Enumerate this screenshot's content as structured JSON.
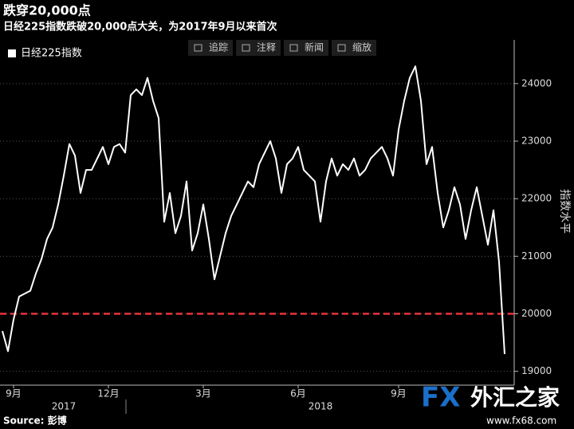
{
  "chart_data": {
    "type": "line",
    "title": "跌穿20,000点",
    "subtitle": "日经225指数跌破20,000点大关，为2017年9月以来首次",
    "y_axis_label": "指数水平",
    "source": "Source: 彭博",
    "categories": [
      null,
      null,
      "9月",
      null,
      null,
      null,
      null,
      null,
      null,
      null,
      null,
      null,
      null,
      null,
      null,
      null,
      null,
      null,
      null,
      "12月",
      null,
      null,
      null,
      null,
      null,
      null,
      null,
      null,
      null,
      null,
      null,
      null,
      null,
      null,
      null,
      null,
      "3月",
      null,
      null,
      null,
      null,
      null,
      null,
      null,
      null,
      null,
      null,
      null,
      null,
      null,
      null,
      null,
      null,
      "6月",
      null,
      null,
      null,
      null,
      null,
      null,
      null,
      null,
      null,
      null,
      null,
      null,
      null,
      null,
      null,
      null,
      null,
      "9月",
      null,
      null,
      null,
      null,
      null,
      null,
      null,
      null,
      null,
      null,
      null,
      null,
      null,
      null,
      null,
      null,
      null,
      null,
      null
    ],
    "year_labels": [
      {
        "value": 11,
        "label": "2017"
      },
      {
        "value": 57,
        "label": "2018"
      }
    ],
    "series": [
      {
        "name": "日经225指数",
        "color": "#ffffff",
        "values": [
          19700,
          19350,
          19900,
          20300,
          20350,
          20400,
          20700,
          20950,
          21300,
          21500,
          21900,
          22400,
          22950,
          22750,
          22100,
          22500,
          22500,
          22700,
          22900,
          22600,
          22900,
          22950,
          22800,
          23800,
          23900,
          23800,
          24100,
          23700,
          23400,
          21600,
          22100,
          21400,
          21700,
          22300,
          21100,
          21400,
          21900,
          21300,
          20600,
          21000,
          21400,
          21700,
          21900,
          22100,
          22300,
          22200,
          22600,
          22800,
          23000,
          22700,
          22100,
          22600,
          22700,
          22900,
          22500,
          22400,
          22300,
          21600,
          22300,
          22700,
          22400,
          22600,
          22500,
          22700,
          22400,
          22500,
          22700,
          22800,
          22900,
          22700,
          22400,
          23200,
          23700,
          24100,
          24300,
          23700,
          22600,
          22900,
          22100,
          21500,
          21800,
          22200,
          21900,
          21300,
          21800,
          22200,
          21700,
          21200,
          21800,
          20900,
          19300
        ]
      }
    ],
    "reference_line": {
      "value": 20000,
      "color": "#e8323c"
    },
    "ylim": [
      18760,
      24760
    ],
    "yticks": [
      19000,
      20000,
      21000,
      22000,
      23000,
      24000
    ],
    "grid": true
  },
  "toolbar": [
    "追踪",
    "注释",
    "新闻",
    "缩放"
  ],
  "watermark": {
    "logo": "FX",
    "name": "外汇之家",
    "url": "www.fx68.com"
  }
}
